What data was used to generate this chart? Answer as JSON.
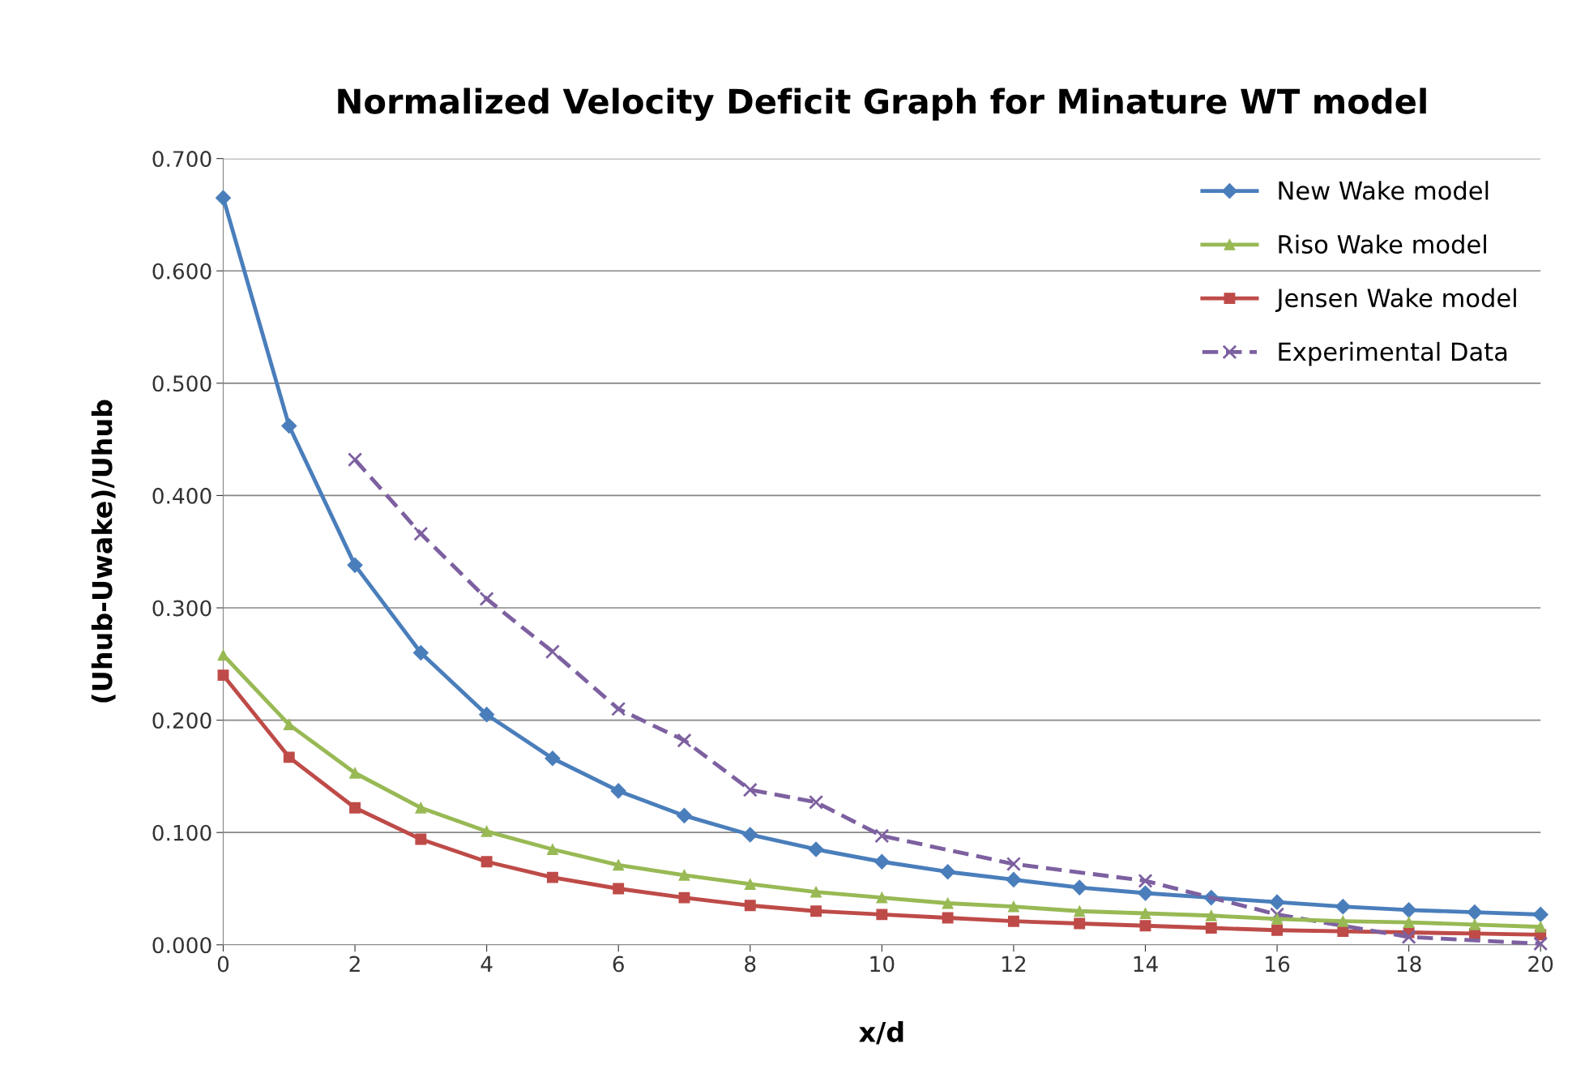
{
  "chart_data": {
    "type": "line",
    "title": "Normalized Velocity Deficit Graph for Minature WT model",
    "xlabel": "x/d",
    "ylabel": "(Uhub-Uwake)/Uhub",
    "x": [
      0,
      1,
      2,
      3,
      4,
      5,
      6,
      7,
      8,
      9,
      10,
      11,
      12,
      13,
      14,
      15,
      16,
      17,
      18,
      19,
      20
    ],
    "xlim": [
      0,
      20
    ],
    "xticks": [
      0,
      2,
      4,
      6,
      8,
      10,
      12,
      14,
      16,
      18,
      20
    ],
    "ylim": [
      0,
      0.7
    ],
    "yticks": [
      {
        "value": 0,
        "label": "0.000"
      },
      {
        "value": 0.1,
        "label": "0.100"
      },
      {
        "value": 0.2,
        "label": "0.200"
      },
      {
        "value": 0.3,
        "label": "0.300"
      },
      {
        "value": 0.4,
        "label": "0.400"
      },
      {
        "value": 0.5,
        "label": "0.500"
      },
      {
        "value": 0.6,
        "label": "0.600"
      },
      {
        "value": 0.7,
        "label": "0.700"
      }
    ],
    "grid": "y",
    "legend": "top right",
    "series": [
      {
        "name": "New Wake model",
        "color": "#4a7ebb",
        "marker": "diamond",
        "line_style": "solid",
        "values": [
          0.665,
          0.462,
          0.338,
          0.26,
          0.205,
          0.166,
          0.137,
          0.115,
          0.098,
          0.085,
          0.074,
          0.065,
          0.058,
          0.051,
          0.046,
          0.042,
          0.038,
          0.034,
          0.031,
          0.029,
          0.027
        ]
      },
      {
        "name": "Riso Wake model",
        "color": "#98b954",
        "marker": "triangle",
        "line_style": "solid",
        "values": [
          0.258,
          0.196,
          0.153,
          0.122,
          0.101,
          0.085,
          0.071,
          0.062,
          0.054,
          0.047,
          0.042,
          0.037,
          0.034,
          0.03,
          0.028,
          0.026,
          0.023,
          0.021,
          0.02,
          0.018,
          0.016
        ]
      },
      {
        "name": "Jensen Wake model",
        "color": "#be4b48",
        "marker": "square",
        "line_style": "solid",
        "values": [
          0.24,
          0.167,
          0.122,
          0.094,
          0.074,
          0.06,
          0.05,
          0.042,
          0.035,
          0.03,
          0.027,
          0.024,
          0.021,
          0.019,
          0.017,
          0.015,
          0.013,
          0.012,
          0.011,
          0.01,
          0.009
        ]
      },
      {
        "name": "Experimental Data",
        "color": "#7d60a0",
        "marker": "cross",
        "line_style": "dashed",
        "x": [
          2,
          3,
          4,
          5,
          6,
          7,
          8,
          9,
          10,
          12,
          14,
          16,
          18,
          20
        ],
        "values": [
          0.432,
          0.366,
          0.308,
          0.261,
          0.21,
          0.182,
          0.138,
          0.127,
          0.097,
          0.072,
          0.057,
          0.027,
          0.007,
          0.001
        ]
      }
    ]
  }
}
